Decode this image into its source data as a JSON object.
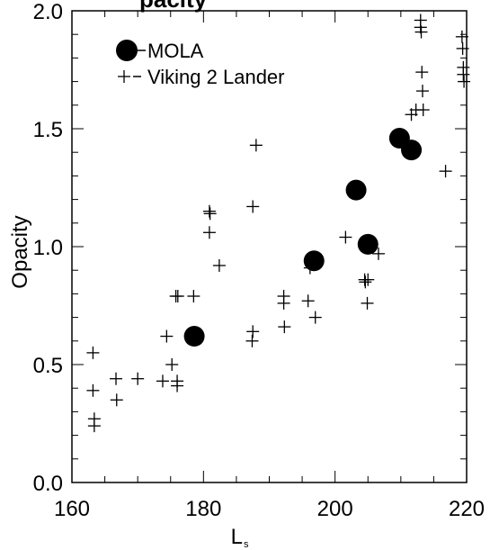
{
  "chart_data": {
    "type": "scatter",
    "title_fragment": "pacity",
    "xlabel": "L",
    "xlabel_subscript": "s",
    "ylabel": "Opacity",
    "xlim": [
      160,
      220
    ],
    "ylim": [
      0.0,
      2.0
    ],
    "xticks": [
      "160",
      "180",
      "200",
      "220"
    ],
    "yticks": [
      "0.0",
      "0.5",
      "1.0",
      "1.5",
      "2.0"
    ],
    "xtick_values": [
      160,
      180,
      200,
      220
    ],
    "ytick_values": [
      0.0,
      0.5,
      1.0,
      1.5,
      2.0
    ],
    "grid": false,
    "legend_position": "top-left",
    "series": [
      {
        "name": "MOLA",
        "marker": "filled-circle",
        "color": "#000000",
        "points": [
          [
            178.6,
            0.62
          ],
          [
            196.8,
            0.94
          ],
          [
            203.2,
            1.24
          ],
          [
            205.0,
            1.01
          ],
          [
            209.8,
            1.46
          ],
          [
            211.6,
            1.41
          ]
        ]
      },
      {
        "name": "Viking 2 Lander",
        "marker": "plus",
        "color": "#000000",
        "points": [
          [
            163.2,
            0.55
          ],
          [
            163.2,
            0.39
          ],
          [
            163.4,
            0.27
          ],
          [
            163.4,
            0.24
          ],
          [
            166.7,
            0.44
          ],
          [
            166.8,
            0.35
          ],
          [
            170.0,
            0.44
          ],
          [
            173.8,
            0.43
          ],
          [
            174.4,
            0.62
          ],
          [
            175.2,
            0.5
          ],
          [
            175.8,
            0.79
          ],
          [
            176.1,
            0.79
          ],
          [
            176.0,
            0.43
          ],
          [
            176.0,
            0.41
          ],
          [
            178.5,
            0.79
          ],
          [
            180.9,
            1.15
          ],
          [
            181.0,
            1.14
          ],
          [
            180.9,
            1.06
          ],
          [
            182.4,
            0.92
          ],
          [
            187.5,
            1.17
          ],
          [
            187.5,
            0.64
          ],
          [
            187.4,
            0.6
          ],
          [
            188.0,
            1.43
          ],
          [
            192.2,
            0.79
          ],
          [
            192.2,
            0.76
          ],
          [
            192.3,
            0.66
          ],
          [
            195.9,
            0.77
          ],
          [
            197.0,
            0.7
          ],
          [
            196.2,
            0.91
          ],
          [
            201.6,
            1.04
          ],
          [
            204.5,
            0.86
          ],
          [
            204.6,
            0.85
          ],
          [
            205.0,
            0.86
          ],
          [
            204.9,
            0.76
          ],
          [
            206.6,
            0.97
          ],
          [
            211.6,
            1.56
          ],
          [
            212.3,
            1.58
          ],
          [
            213.0,
            1.96
          ],
          [
            213.0,
            1.93
          ],
          [
            213.1,
            1.91
          ],
          [
            213.2,
            1.74
          ],
          [
            213.3,
            1.66
          ],
          [
            213.4,
            1.58
          ],
          [
            216.8,
            1.32
          ],
          [
            219.3,
            1.89
          ],
          [
            219.4,
            1.84
          ],
          [
            219.5,
            1.76
          ],
          [
            219.5,
            1.73
          ],
          [
            219.6,
            1.7
          ]
        ]
      }
    ]
  }
}
